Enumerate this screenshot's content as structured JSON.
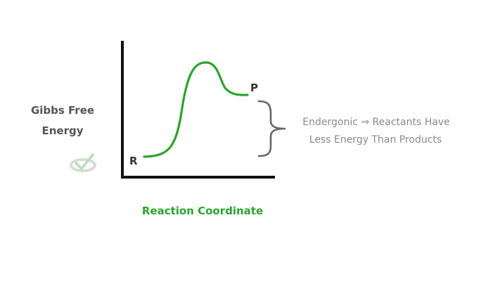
{
  "y_axis_label": {
    "line1": "Gibbs Free",
    "line2": "Energy"
  },
  "x_axis_label": "Reaction Coordinate",
  "point_labels": {
    "reactants": "R",
    "products": "P"
  },
  "annotation": {
    "line1": "Endergonic ⇒ Reactants Have",
    "line2": "Less Energy Than Products"
  },
  "colors": {
    "curve": "#2aa52a",
    "axes": "#111111",
    "brace": "#666666",
    "annotation": "#8a8a8a",
    "x_label": "#2aa52a",
    "y_label": "#555555"
  },
  "icons": {
    "logo": "check-swirl-logo"
  }
}
